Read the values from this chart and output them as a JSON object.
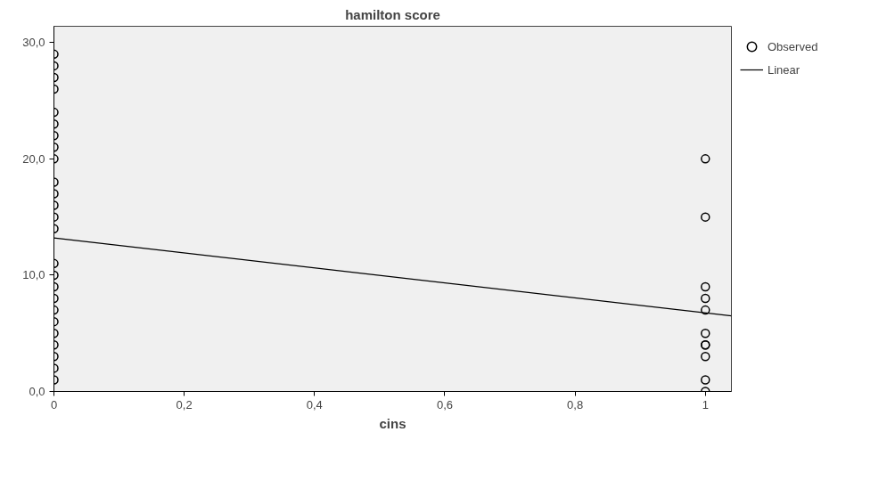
{
  "chart_data": {
    "type": "scatter",
    "title": "hamilton score",
    "xlabel": "cins",
    "series": [
      {
        "name": "Observed",
        "color": "#000000",
        "marker": "circle",
        "x": [
          0,
          0,
          0,
          0,
          0,
          0,
          0,
          0,
          0,
          0,
          0,
          0,
          0,
          0,
          0,
          0,
          0,
          0,
          0,
          0,
          0,
          0,
          0,
          0,
          0,
          1,
          1,
          1,
          1,
          1,
          1,
          1,
          1,
          1,
          1,
          1
        ],
        "values": [
          29,
          28,
          27,
          26,
          24,
          23,
          22,
          21,
          20,
          18,
          17,
          16,
          15,
          14,
          11,
          10,
          9,
          8,
          7,
          6,
          5,
          4,
          3,
          2,
          1,
          20,
          15,
          9,
          8,
          7,
          5,
          4,
          4,
          3,
          1,
          0
        ]
      },
      {
        "name": "Linear",
        "type": "line",
        "color": "#000000",
        "x": [
          0,
          1.04
        ],
        "values": [
          13.2,
          6.5
        ]
      }
    ],
    "xlim": [
      0,
      1.04
    ],
    "ylim": [
      0,
      31.4
    ],
    "xticks": [
      0,
      {
        "value": 0.2,
        "label": "0,2"
      },
      {
        "value": 0.4,
        "label": "0,4"
      },
      {
        "value": 0.6,
        "label": "0,6"
      },
      {
        "value": 0.8,
        "label": "0,8"
      },
      1
    ],
    "yticks": [
      {
        "value": 0,
        "label": "0,0"
      },
      {
        "value": 10,
        "label": "10,0"
      },
      {
        "value": 20,
        "label": "20,0"
      },
      {
        "value": 30,
        "label": "30,0"
      }
    ],
    "grid": false,
    "legend": "top right"
  }
}
